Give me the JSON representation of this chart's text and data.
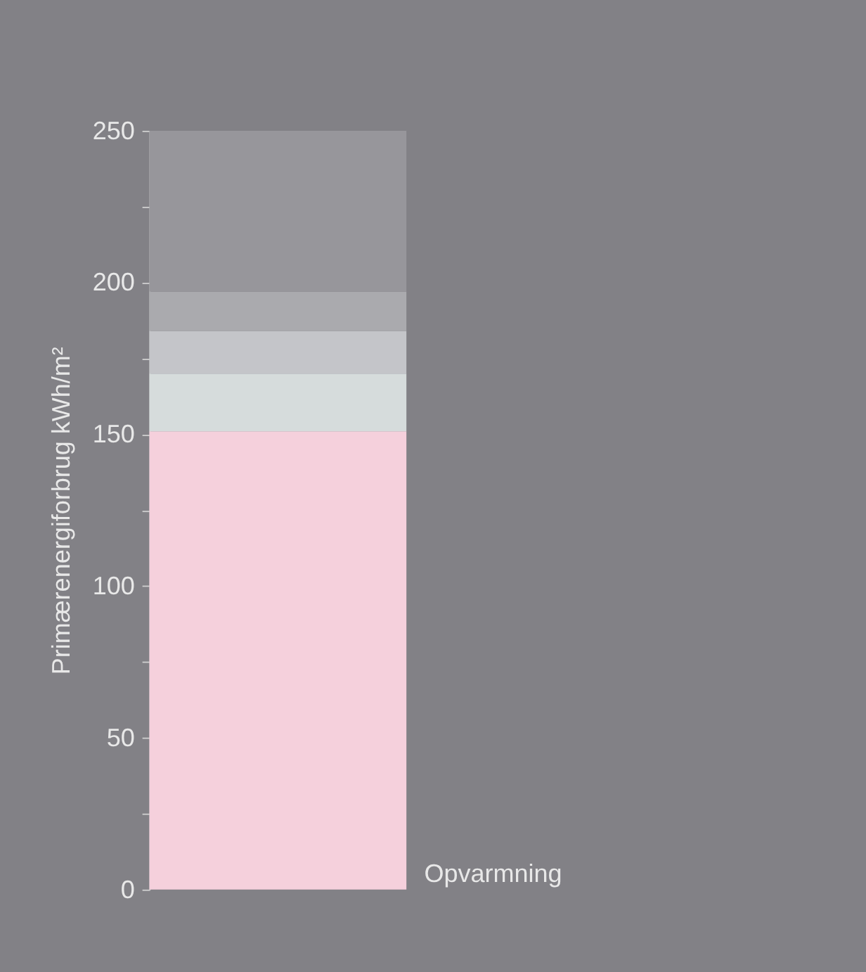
{
  "chart_data": {
    "type": "bar",
    "ylabel": "Primærenergiforbrug kWh/m²",
    "categories": [
      null
    ],
    "stacked": true,
    "legend": false,
    "grid": false,
    "tick_labels": "y",
    "ylim": [
      0,
      250
    ],
    "yticks": [
      0,
      {
        "value": 25,
        "label": null
      },
      50,
      {
        "value": 75,
        "label": null
      },
      100,
      {
        "value": 125,
        "label": null
      },
      150,
      {
        "value": 175,
        "label": null
      },
      200,
      {
        "value": 225,
        "label": null
      },
      250
    ],
    "series": [
      {
        "name": "Opvarmning",
        "color": "#f5d0dc",
        "values": [
          151
        ]
      },
      {
        "color": "#d6dcdc",
        "values": [
          19
        ]
      },
      {
        "color": "#c4c5c9",
        "values": [
          14
        ]
      },
      {
        "color": "#aaaaae",
        "values": [
          13
        ]
      },
      {
        "color": "#97969b",
        "values": [
          53
        ]
      }
    ]
  }
}
